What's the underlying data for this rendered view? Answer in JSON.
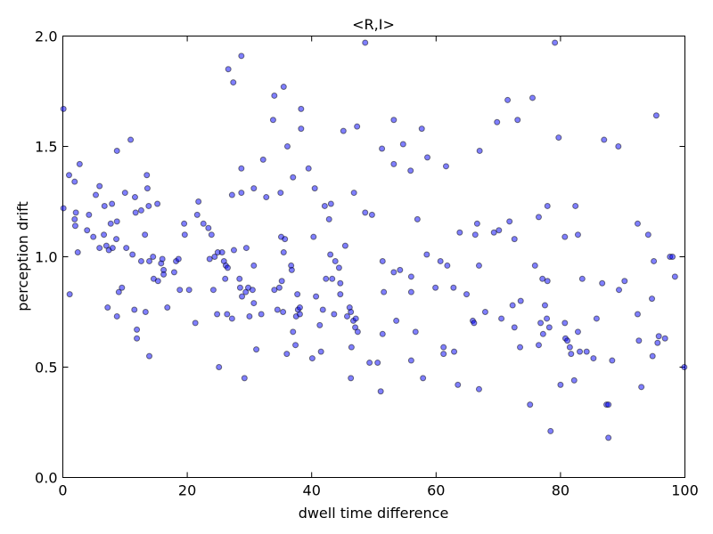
{
  "chart_data": {
    "type": "scatter",
    "title": "<R,I>",
    "x_label": "dwell time difference",
    "y_label": "perception drift",
    "color": "#0000ff",
    "alpha": 0.5,
    "xlim": [
      0,
      100
    ],
    "xticks": [
      0,
      20,
      40,
      60,
      80,
      100
    ],
    "ylim": [
      0,
      2
    ],
    "yticks": [
      {
        "value": 0,
        "label": "0.0"
      },
      {
        "value": 0.5,
        "label": "0.5"
      },
      {
        "value": 1,
        "label": "1.0"
      },
      {
        "value": 1.5,
        "label": "1.5"
      },
      {
        "value": 2,
        "label": "2.0"
      }
    ],
    "x": [
      0.1,
      0.1,
      1,
      1.1,
      1.9,
      1.9,
      2.1,
      2,
      2.4,
      2.7,
      3.9,
      4.2,
      4.9,
      5.3,
      5.9,
      5.9,
      6.6,
      6.7,
      7,
      7.2,
      7.4,
      7.7,
      7.9,
      8,
      8.6,
      8.7,
      8.7,
      8.7,
      9,
      9.5,
      10,
      10.2,
      10.9,
      11.2,
      11.5,
      11.6,
      11.7,
      11.9,
      11.9,
      12.6,
      12.6,
      13.2,
      13.3,
      13.5,
      13.6,
      13.8,
      13.9,
      13.9,
      14.5,
      14.6,
      15.2,
      15.3,
      15.8,
      16,
      16.2,
      16.2,
      16.8,
      17.9,
      18.2,
      18.6,
      18.8,
      19.5,
      19.6,
      20.3,
      21.3,
      21.6,
      21.8,
      22.6,
      23.4,
      23.6,
      23.9,
      24.2,
      24.4,
      24.8,
      24.9,
      25.1,
      25.6,
      25.9,
      26.1,
      26.2,
      26.4,
      26.5,
      26.6,
      27.2,
      27.2,
      27.4,
      27.5,
      28.4,
      28.5,
      28.7,
      28.7,
      28.7,
      28.8,
      29.2,
      29.4,
      29.5,
      29.8,
      30,
      30.5,
      30.7,
      30.7,
      30.7,
      31.1,
      31.9,
      32.2,
      32.7,
      33.8,
      34,
      34,
      34.5,
      34.8,
      35,
      35.1,
      35.2,
      35.4,
      35.5,
      35.5,
      35.7,
      36,
      36.1,
      36.7,
      36.8,
      37,
      37,
      37.4,
      37.5,
      37.7,
      37.8,
      38.1,
      38.3,
      38.3,
      38.1,
      39.5,
      40.1,
      40.3,
      40.5,
      40.7,
      41.3,
      41.5,
      41.8,
      42.1,
      42.3,
      42.8,
      43,
      43.1,
      43.3,
      43.6,
      43.8,
      44.4,
      44.6,
      44.6,
      45.1,
      45.4,
      45.7,
      46.1,
      46.3,
      46.3,
      46.4,
      46.7,
      46.8,
      47,
      47.1,
      47.3,
      47.4,
      48.6,
      48.6,
      49.3,
      49.7,
      50.6,
      51.1,
      51.3,
      51.4,
      51.4,
      51.6,
      53.2,
      53.2,
      53.2,
      53.6,
      54.2,
      54.7,
      55.9,
      56,
      56,
      56,
      56.7,
      57,
      57.7,
      57.9,
      58.5,
      58.6,
      59.9,
      60.7,
      61.2,
      61.2,
      61.6,
      61.8,
      62.8,
      62.9,
      63.5,
      63.8,
      64.9,
      65.9,
      66.1,
      66.3,
      66.6,
      66.9,
      66.9,
      67,
      67.9,
      69.3,
      69.8,
      70.1,
      70.5,
      71.5,
      71.8,
      72.3,
      72.6,
      72.6,
      73.1,
      73.5,
      73.6,
      75.1,
      75.5,
      75.9,
      76.5,
      76.5,
      76.8,
      77.1,
      77.2,
      77.5,
      77.8,
      77.9,
      77.9,
      78.2,
      78.4,
      79.1,
      79.7,
      80,
      80.7,
      80.7,
      80.8,
      81.1,
      81.5,
      81.7,
      82.2,
      82.4,
      82.8,
      82.8,
      83.1,
      83.5,
      84.2,
      85.3,
      85.8,
      86.7,
      87,
      87.4,
      87.7,
      87.7,
      88.3,
      89.3,
      89.4,
      90.3,
      92.4,
      92.4,
      92.6,
      93,
      94.1,
      94.7,
      94.8,
      95,
      95.4,
      95.6,
      95.8,
      96.8,
      97.6,
      98,
      98.4,
      99.9
    ],
    "values": [
      1.67,
      1.22,
      1.37,
      0.83,
      1.34,
      1.17,
      1.2,
      1.14,
      1.02,
      1.42,
      1.12,
      1.19,
      1.09,
      1.28,
      1.32,
      1.04,
      1.1,
      1.23,
      1.05,
      0.77,
      1.03,
      1.15,
      1.24,
      1.04,
      1.08,
      1.48,
      1.16,
      0.73,
      0.84,
      0.86,
      1.29,
      1.04,
      1.53,
      1.01,
      0.76,
      1.27,
      1.2,
      0.67,
      0.63,
      1.21,
      0.98,
      1.1,
      0.75,
      1.37,
      1.31,
      1.23,
      0.98,
      0.55,
      1,
      0.9,
      1.24,
      0.89,
      0.97,
      0.99,
      0.94,
      0.92,
      0.77,
      0.93,
      0.98,
      0.99,
      0.85,
      1.15,
      1.1,
      0.85,
      0.7,
      1.19,
      1.25,
      1.15,
      1.13,
      0.99,
      1.1,
      0.85,
      1,
      0.74,
      1.02,
      0.5,
      1.02,
      0.98,
      0.9,
      0.96,
      0.74,
      0.95,
      1.85,
      1.28,
      0.72,
      1.79,
      1.03,
      0.9,
      0.86,
      1.91,
      1.4,
      1.29,
      0.82,
      0.45,
      0.84,
      1.04,
      0.86,
      0.73,
      0.85,
      1.31,
      0.79,
      0.96,
      0.58,
      0.74,
      1.44,
      1.27,
      1.62,
      1.73,
      0.85,
      0.76,
      0.86,
      1.29,
      1.09,
      0.89,
      0.75,
      1.77,
      1.02,
      1.08,
      0.56,
      1.5,
      0.96,
      0.94,
      1.36,
      0.66,
      0.6,
      0.73,
      0.83,
      0.76,
      0.74,
      1.58,
      1.67,
      0.77,
      1.4,
      0.54,
      1.09,
      1.31,
      0.82,
      0.69,
      0.57,
      0.76,
      1.23,
      0.9,
      1.17,
      1.01,
      1.24,
      0.9,
      0.74,
      0.98,
      0.95,
      0.88,
      0.83,
      1.57,
      1.05,
      0.73,
      0.77,
      0.75,
      0.45,
      0.59,
      0.71,
      1.29,
      0.68,
      0.72,
      1.59,
      0.66,
      1.97,
      1.2,
      0.52,
      1.19,
      0.52,
      0.39,
      1.49,
      0.98,
      0.65,
      0.84,
      1.62,
      0.93,
      1.42,
      0.71,
      0.94,
      1.51,
      1.39,
      0.53,
      0.91,
      0.84,
      0.66,
      1.17,
      1.58,
      0.45,
      1.01,
      1.45,
      0.86,
      0.98,
      0.59,
      0.56,
      1.41,
      0.96,
      0.86,
      0.57,
      0.42,
      1.11,
      0.83,
      0.71,
      0.7,
      1.1,
      1.15,
      0.96,
      0.4,
      1.48,
      0.75,
      1.11,
      1.61,
      1.12,
      0.72,
      1.71,
      1.16,
      0.78,
      1.08,
      0.68,
      1.62,
      0.59,
      0.8,
      0.33,
      1.72,
      0.96,
      0.6,
      1.18,
      0.7,
      0.9,
      0.65,
      0.78,
      0.72,
      0.89,
      1.23,
      0.68,
      0.21,
      1.97,
      1.54,
      0.42,
      0.7,
      1.09,
      0.63,
      0.62,
      0.59,
      0.56,
      0.44,
      1.23,
      1.1,
      0.66,
      0.57,
      0.9,
      0.57,
      0.54,
      0.72,
      0.88,
      1.53,
      0.33,
      0.33,
      0.18,
      0.53,
      1.5,
      0.85,
      0.89,
      1.15,
      0.74,
      0.62,
      0.41,
      1.1,
      0.81,
      0.55,
      0.98,
      1.64,
      0.61,
      0.64,
      0.63,
      1,
      1,
      0.91,
      0.5
    ]
  }
}
